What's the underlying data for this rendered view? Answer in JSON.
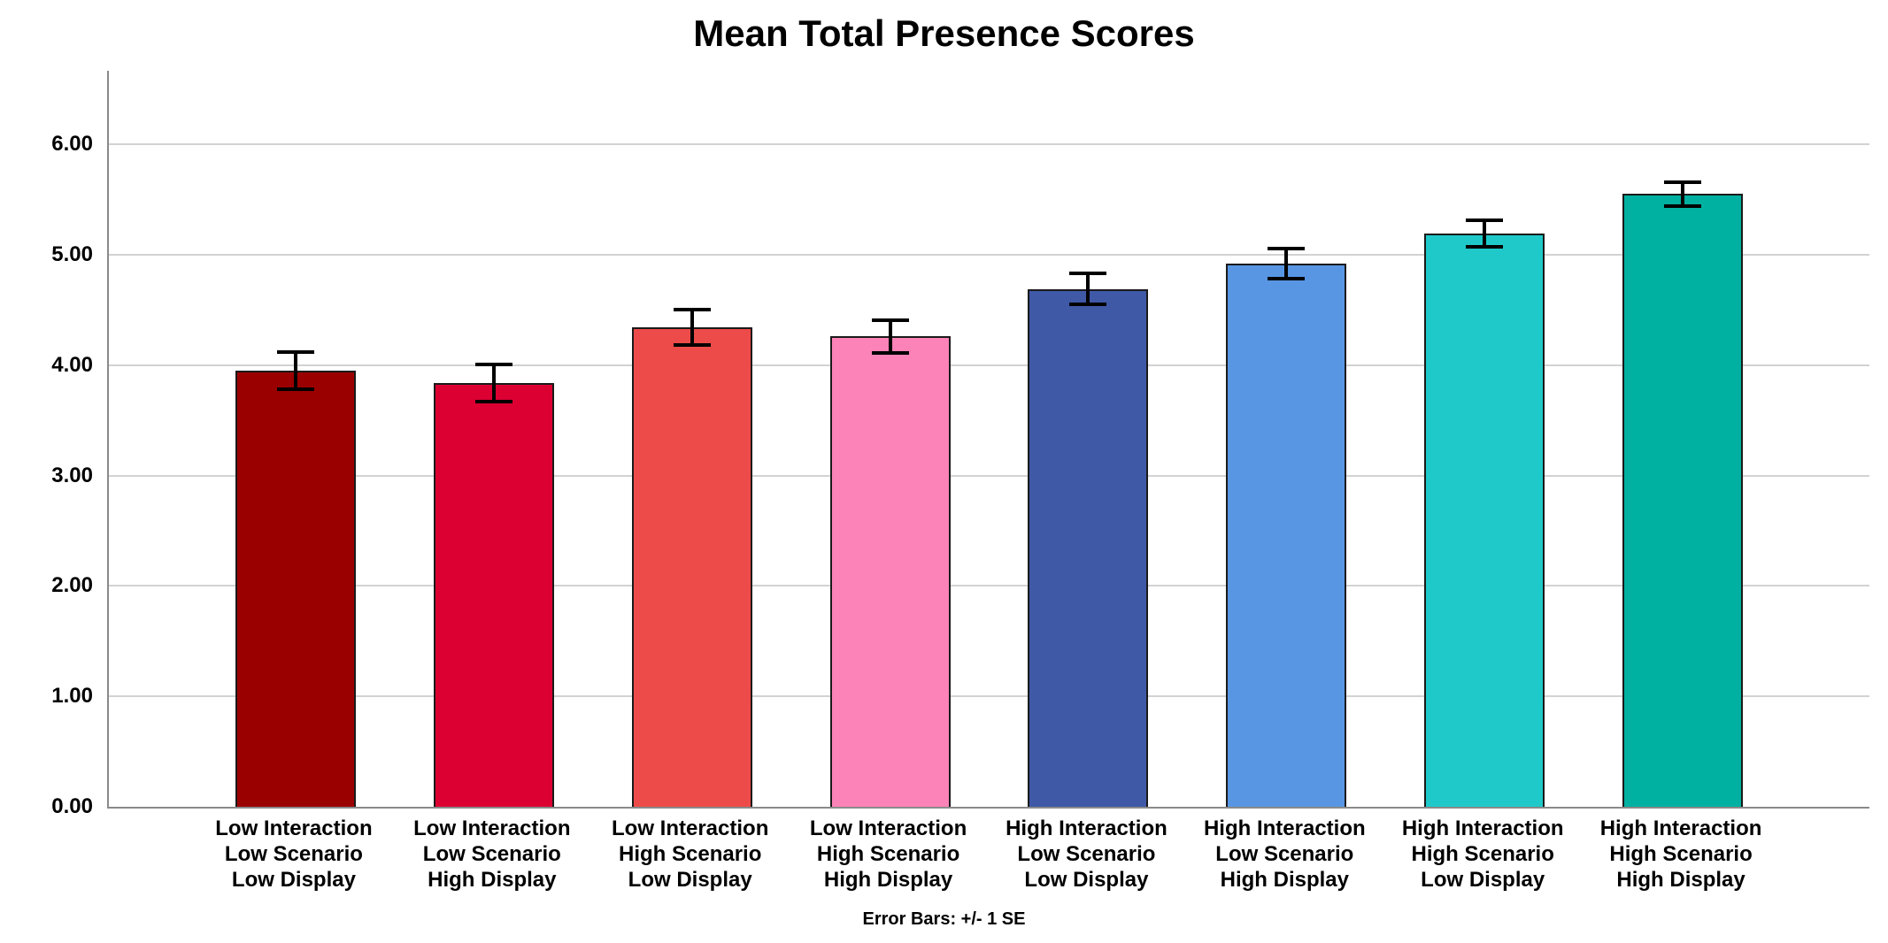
{
  "chart_data": {
    "type": "bar",
    "title": "Mean Total Presence Scores",
    "footnote": "Error Bars: +/- 1 SE",
    "xlabel": "",
    "ylabel": "",
    "ylim": [
      0,
      6.67
    ],
    "yticks": [
      "0.00",
      "1.00",
      "2.00",
      "3.00",
      "4.00",
      "5.00",
      "6.00"
    ],
    "grid": true,
    "legend": false,
    "error_bars": "+/- 1 SE",
    "categories": [
      [
        "Low Interaction",
        "Low Scenario",
        "Low Display"
      ],
      [
        "Low Interaction",
        "Low Scenario",
        "High Display"
      ],
      [
        "Low Interaction",
        "High Scenario",
        "Low Display"
      ],
      [
        "Low Interaction",
        "High Scenario",
        "High Display"
      ],
      [
        "High Interaction",
        "Low Scenario",
        "Low Display"
      ],
      [
        "High Interaction",
        "Low Scenario",
        "High Display"
      ],
      [
        "High Interaction",
        "High Scenario",
        "Low Display"
      ],
      [
        "High Interaction",
        "High Scenario",
        "High Display"
      ]
    ],
    "values": [
      3.95,
      3.84,
      4.34,
      4.26,
      4.69,
      4.92,
      5.19,
      5.55
    ],
    "standard_errors": [
      0.17,
      0.17,
      0.16,
      0.15,
      0.14,
      0.14,
      0.12,
      0.11
    ],
    "bar_colors": [
      "#9B0000",
      "#DC0032",
      "#ED4B49",
      "#FB83B8",
      "#3F59A7",
      "#5896E4",
      "#1FC9C9",
      "#00B1A1"
    ]
  },
  "colors": {
    "background": "#ffffff",
    "axis_line": "#8a8a8a",
    "gridline": "#d2d2d2",
    "bar_border": "#1a1a1a",
    "error_bar": "#000000",
    "text": "#000000"
  }
}
